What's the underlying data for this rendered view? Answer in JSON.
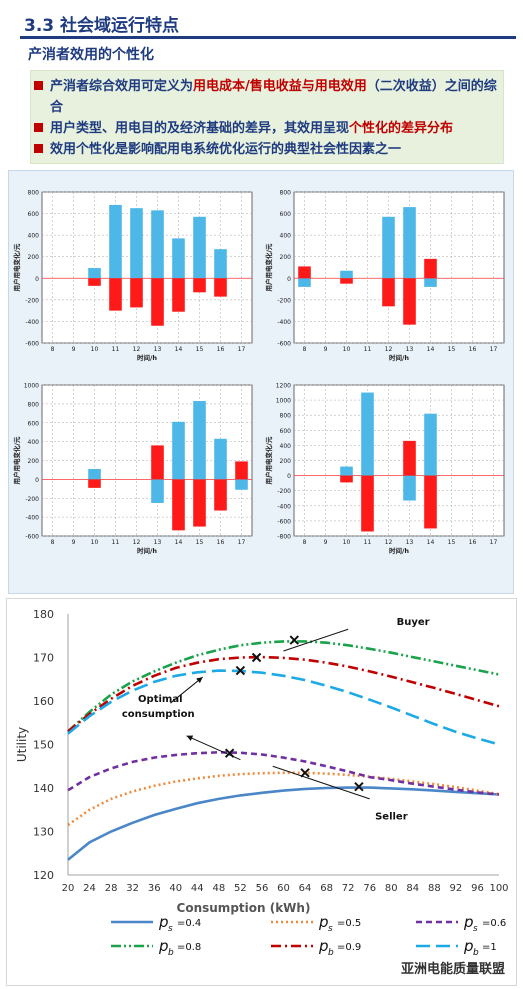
{
  "slide": {
    "title": "3.3 社会域运行特点",
    "subtitle": "产消者效用的个性化"
  },
  "bullets": [
    {
      "a": "产消者综合效用可定义为",
      "b": "用电成本/售电收益与用电效用",
      "c": "（二次收益）之间的综合"
    },
    {
      "a": "用户类型、用电目的及经济基础的差异，其效用呈现",
      "b": "个性化的差异分布"
    },
    {
      "a": "效用个性化是影响配用电系统优化运行的典型社会性因素之一"
    }
  ],
  "colors": {
    "blue": "#4db8e8",
    "red": "#ff1a1a",
    "title": "#1f3b80",
    "accent": "#c00000"
  },
  "chart_data": [
    {
      "type": "bar",
      "xlabel": "时间/h",
      "ylabel": "用户用电变化/元",
      "categories": [
        "8",
        "9",
        "10",
        "11",
        "12",
        "13",
        "14",
        "15",
        "16",
        "17"
      ],
      "ylim": [
        -600,
        800
      ],
      "yticks": [
        -600,
        -400,
        -200,
        0,
        200,
        400,
        600,
        800
      ],
      "series": [
        {
          "color": "blue",
          "values": [
            0,
            0,
            95,
            680,
            650,
            630,
            370,
            570,
            270,
            0
          ]
        },
        {
          "color": "red",
          "values": [
            0,
            0,
            -70,
            -300,
            -270,
            -440,
            -310,
            -130,
            -170,
            0
          ]
        }
      ]
    },
    {
      "type": "bar",
      "xlabel": "时间/h",
      "ylabel": "用户用电变化/元",
      "categories": [
        "8",
        "9",
        "10",
        "11",
        "12",
        "13",
        "14",
        "15",
        "16",
        "17"
      ],
      "ylim": [
        -600,
        800
      ],
      "yticks": [
        -600,
        -400,
        -200,
        0,
        200,
        400,
        600,
        800
      ],
      "series": [
        {
          "color": "blue",
          "values": [
            -80,
            0,
            70,
            0,
            570,
            660,
            -80,
            0,
            0,
            0
          ]
        },
        {
          "color": "red",
          "values": [
            110,
            0,
            -50,
            0,
            -260,
            -430,
            180,
            0,
            0,
            0
          ]
        }
      ]
    },
    {
      "type": "bar",
      "xlabel": "时间/h",
      "ylabel": "用户用电变化/元",
      "categories": [
        "8",
        "9",
        "10",
        "11",
        "12",
        "13",
        "14",
        "15",
        "16",
        "17"
      ],
      "ylim": [
        -600,
        1000
      ],
      "yticks": [
        -600,
        -400,
        -200,
        0,
        200,
        400,
        600,
        800,
        1000
      ],
      "series": [
        {
          "color": "blue",
          "values": [
            0,
            0,
            110,
            0,
            0,
            -250,
            610,
            830,
            430,
            -110
          ]
        },
        {
          "color": "red",
          "values": [
            0,
            0,
            -90,
            0,
            0,
            360,
            -540,
            -500,
            -330,
            190
          ]
        }
      ]
    },
    {
      "type": "bar",
      "xlabel": "时间/h",
      "ylabel": "用户用电变化/元",
      "categories": [
        "8",
        "9",
        "10",
        "11",
        "12",
        "13",
        "14",
        "15",
        "16",
        "17"
      ],
      "ylim": [
        -800,
        1200
      ],
      "yticks": [
        -800,
        -600,
        -400,
        -200,
        0,
        200,
        400,
        600,
        800,
        1000,
        1200
      ],
      "series": [
        {
          "color": "blue",
          "values": [
            0,
            0,
            120,
            1100,
            0,
            -330,
            820,
            0,
            0,
            0
          ]
        },
        {
          "color": "red",
          "values": [
            0,
            0,
            -90,
            -740,
            0,
            460,
            -700,
            0,
            0,
            0
          ]
        }
      ]
    },
    {
      "type": "line",
      "xlabel": "Consumption (kWh)",
      "ylabel": "Utility",
      "x": [
        20,
        24,
        28,
        32,
        36,
        40,
        44,
        48,
        52,
        56,
        60,
        64,
        68,
        72,
        76,
        80,
        84,
        88,
        92,
        96,
        100
      ],
      "xlim": [
        20,
        100
      ],
      "ylim": [
        120,
        180
      ],
      "yticks": [
        120,
        130,
        140,
        150,
        160,
        170,
        180
      ],
      "series": [
        {
          "name": "ps=0.4",
          "p": "s",
          "pv": "=0.4",
          "color": "#4a86c8",
          "dash": "none",
          "values": [
            123.5,
            127.5,
            130,
            132,
            133.8,
            135.2,
            136.5,
            137.5,
            138.3,
            138.9,
            139.4,
            139.8,
            140,
            140.1,
            140.1,
            139.9,
            139.7,
            139.4,
            139.1,
            138.8,
            138.5
          ]
        },
        {
          "name": "ps=0.5",
          "p": "s",
          "pv": "=0.5",
          "color": "#f08a3c",
          "dash": "2,3",
          "values": [
            131.5,
            135,
            137.5,
            139.2,
            140.5,
            141.5,
            142.2,
            142.8,
            143.2,
            143.4,
            143.5,
            143.5,
            143.3,
            143,
            142.6,
            142.1,
            141.5,
            140.9,
            140.2,
            139.4,
            138.6
          ]
        },
        {
          "name": "ps=0.6",
          "p": "s",
          "pv": "=0.6",
          "color": "#7030a0",
          "dash": "6,4",
          "values": [
            139.5,
            142.5,
            144.5,
            146,
            147,
            147.6,
            148,
            148.2,
            148.1,
            147.7,
            147,
            146.1,
            145,
            143.8,
            142.5,
            141.8,
            141,
            140.3,
            139.6,
            139,
            138.5
          ]
        },
        {
          "name": "pb=0.8",
          "p": "b",
          "pv": "=0.8",
          "color": "#1aa34a",
          "dash": "10,3,2,3,2,3",
          "values": [
            153,
            157.5,
            161.5,
            164.5,
            166.8,
            168.8,
            170.5,
            171.8,
            172.8,
            173.4,
            173.7,
            173.7,
            173.4,
            172.8,
            172,
            171.1,
            170.1,
            169.1,
            168.1,
            167.1,
            166.1
          ]
        },
        {
          "name": "pb=0.9",
          "p": "b",
          "pv": "=0.9",
          "color": "#c00000",
          "dash": "10,4,2,4",
          "values": [
            153,
            157,
            160.5,
            163.5,
            165.8,
            167.6,
            168.8,
            169.6,
            170,
            170.1,
            169.9,
            169.5,
            168.8,
            167.9,
            166.8,
            165.6,
            164.3,
            163,
            161.6,
            160.2,
            158.8
          ]
        },
        {
          "name": "pb=1",
          "p": "b",
          "pv": "=1",
          "color": "#1ca9e6",
          "dash": "14,6",
          "values": [
            152.5,
            156.5,
            159.8,
            162.4,
            164.4,
            165.8,
            166.6,
            167,
            166.9,
            166.5,
            165.8,
            164.8,
            163.5,
            162,
            160.3,
            158.5,
            156.6,
            154.7,
            152.9,
            151.4,
            150
          ]
        }
      ],
      "markers": [
        [
          62,
          174
        ],
        [
          52,
          167
        ],
        [
          55,
          170
        ],
        [
          50,
          148
        ],
        [
          64,
          143.5
        ],
        [
          74,
          140.3
        ]
      ],
      "annotations": [
        {
          "text": "Buyer"
        },
        {
          "text": "Optimal"
        },
        {
          "text": "consumption"
        },
        {
          "text": "Seller"
        }
      ]
    }
  ],
  "watermark": "亚洲电能质量联盟"
}
